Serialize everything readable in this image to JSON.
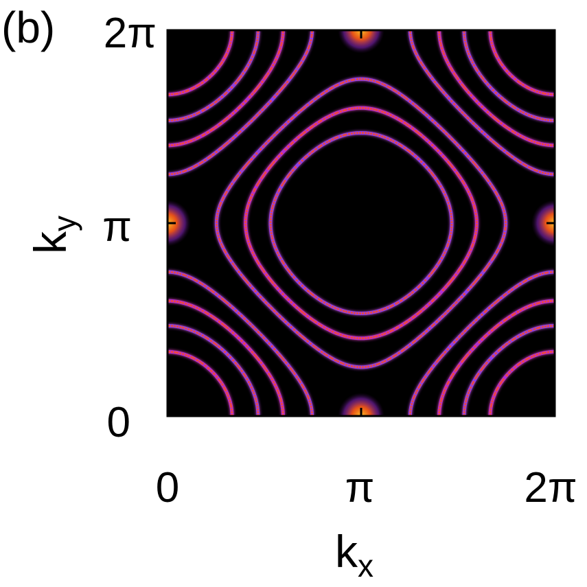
{
  "panel_label": "(b)",
  "chart_data": {
    "type": "heatmap",
    "title": "",
    "xlabel": "k",
    "xlabel_sub": "x",
    "ylabel": "k",
    "ylabel_sub": "y",
    "x_ticks": [
      {
        "value": 0,
        "label": "0"
      },
      {
        "value": 3.14159,
        "label": "π"
      },
      {
        "value": 6.28318,
        "label": "2π"
      }
    ],
    "y_ticks": [
      {
        "value": 0,
        "label": "0"
      },
      {
        "value": 3.14159,
        "label": "π"
      },
      {
        "value": 6.28318,
        "label": "2π"
      }
    ],
    "xlim": [
      0,
      6.28318
    ],
    "ylim": [
      0,
      6.28318
    ],
    "colormap": [
      "#000000",
      "#3a0a4a",
      "#7a22d8",
      "#c2189c",
      "#ff4a1a",
      "#ffb21e"
    ],
    "background_color": "#000000",
    "contours": [
      {
        "energy": -0.55,
        "color": "#8a3ff0"
      },
      {
        "energy": -0.35,
        "color": "#b02fd6"
      },
      {
        "energy": -0.15,
        "color": "#8a3ff0"
      },
      {
        "energy": 0.15,
        "color": "#8a3ff0"
      },
      {
        "energy": 0.35,
        "color": "#b02fd6"
      },
      {
        "energy": 0.55,
        "color": "#8a3ff0"
      },
      {
        "energy": 0.75,
        "color": "#b02fd6"
      }
    ],
    "hot_spots": [
      {
        "kx": 3.14159,
        "ky": 6.28318
      },
      {
        "kx": 3.14159,
        "ky": 0
      },
      {
        "kx": 0,
        "ky": 3.14159
      },
      {
        "kx": 6.28318,
        "ky": 3.14159
      }
    ]
  }
}
